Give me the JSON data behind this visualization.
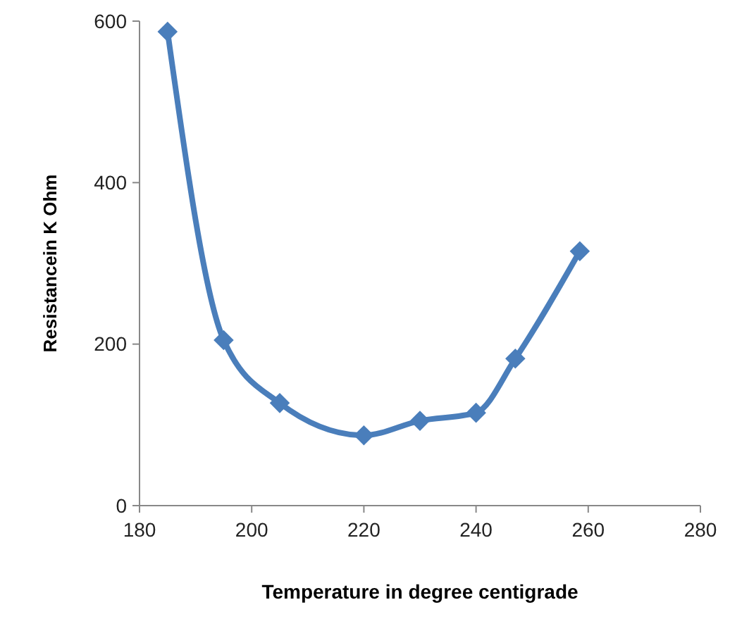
{
  "chart_data": {
    "type": "line",
    "xlabel": "Temperature in degree centigrade",
    "ylabel": "Resistancein K Ohm",
    "x": [
      185,
      195,
      205,
      220,
      230,
      240,
      247,
      258.5
    ],
    "series": [
      {
        "color": "#4a7ebb",
        "values": [
          587,
          205,
          127,
          87,
          105,
          115,
          182,
          315
        ]
      }
    ],
    "xlim": [
      180,
      280
    ],
    "xticks": [
      180,
      200,
      220,
      240,
      260,
      280
    ],
    "ylim": [
      0,
      600
    ],
    "yticks": [
      0,
      200,
      400,
      600
    ],
    "marker": "diamond",
    "line_style": "solid"
  }
}
